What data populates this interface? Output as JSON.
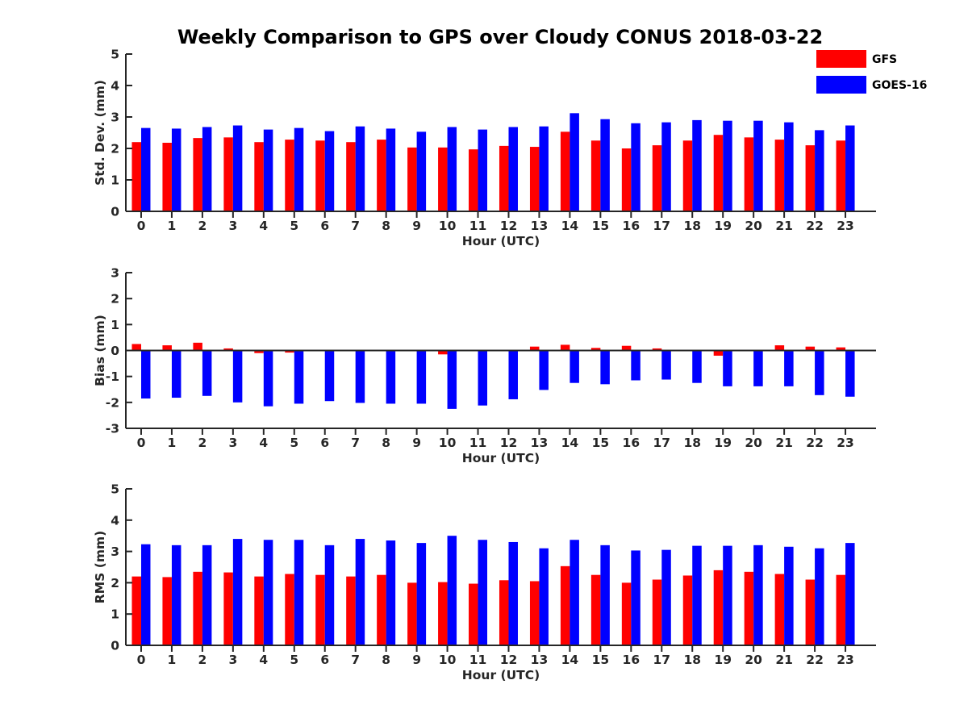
{
  "title": "Weekly Comparison to GPS over Cloudy CONUS 2018-03-22",
  "legend": {
    "placement": "top-right",
    "entries": [
      {
        "name": "GFS",
        "color": "#ff0000"
      },
      {
        "name": "GOES-16",
        "color": "#0000ff"
      }
    ]
  },
  "chart_data": [
    {
      "type": "bar",
      "xlabel": "Hour (UTC)",
      "ylabel": "Std. Dev. (mm)",
      "ylim": [
        0,
        5
      ],
      "yticks": [
        0,
        1,
        2,
        3,
        4,
        5
      ],
      "categories": [
        "0",
        "1",
        "2",
        "3",
        "4",
        "5",
        "6",
        "7",
        "8",
        "9",
        "10",
        "11",
        "12",
        "13",
        "14",
        "15",
        "16",
        "17",
        "18",
        "19",
        "20",
        "21",
        "22",
        "23"
      ],
      "series": [
        {
          "name": "GFS",
          "color": "#ff0000",
          "values": [
            2.2,
            2.18,
            2.33,
            2.35,
            2.2,
            2.28,
            2.25,
            2.2,
            2.28,
            2.03,
            2.03,
            1.97,
            2.08,
            2.05,
            2.53,
            2.25,
            2.0,
            2.1,
            2.25,
            2.43,
            2.35,
            2.28,
            2.1,
            2.25
          ]
        },
        {
          "name": "GOES-16",
          "color": "#0000ff",
          "values": [
            2.65,
            2.63,
            2.68,
            2.73,
            2.6,
            2.65,
            2.55,
            2.7,
            2.63,
            2.53,
            2.68,
            2.6,
            2.68,
            2.7,
            3.12,
            2.93,
            2.8,
            2.83,
            2.9,
            2.88,
            2.88,
            2.83,
            2.58,
            2.73
          ]
        }
      ]
    },
    {
      "type": "bar",
      "xlabel": "Hour (UTC)",
      "ylabel": "Bias (mm)",
      "ylim": [
        -3,
        3
      ],
      "yticks": [
        -3,
        -2,
        -1,
        0,
        1,
        2,
        3
      ],
      "categories": [
        "0",
        "1",
        "2",
        "3",
        "4",
        "5",
        "6",
        "7",
        "8",
        "9",
        "10",
        "11",
        "12",
        "13",
        "14",
        "15",
        "16",
        "17",
        "18",
        "19",
        "20",
        "21",
        "22",
        "23"
      ],
      "series": [
        {
          "name": "GFS",
          "color": "#ff0000",
          "values": [
            0.25,
            0.2,
            0.3,
            0.08,
            -0.1,
            -0.08,
            0.0,
            0.0,
            0.0,
            0.0,
            -0.15,
            0.0,
            0.03,
            0.15,
            0.22,
            0.1,
            0.18,
            0.08,
            -0.03,
            -0.2,
            0.0,
            0.2,
            0.15,
            0.12
          ]
        },
        {
          "name": "GOES-16",
          "color": "#0000ff",
          "values": [
            -1.85,
            -1.82,
            -1.75,
            -2.0,
            -2.15,
            -2.05,
            -1.95,
            -2.02,
            -2.05,
            -2.05,
            -2.25,
            -2.12,
            -1.88,
            -1.52,
            -1.25,
            -1.3,
            -1.15,
            -1.12,
            -1.25,
            -1.38,
            -1.38,
            -1.38,
            -1.72,
            -1.78
          ]
        }
      ]
    },
    {
      "type": "bar",
      "xlabel": "Hour (UTC)",
      "ylabel": "RMS (mm)",
      "ylim": [
        0,
        5
      ],
      "yticks": [
        0,
        1,
        2,
        3,
        4,
        5
      ],
      "categories": [
        "0",
        "1",
        "2",
        "3",
        "4",
        "5",
        "6",
        "7",
        "8",
        "9",
        "10",
        "11",
        "12",
        "13",
        "14",
        "15",
        "16",
        "17",
        "18",
        "19",
        "20",
        "21",
        "22",
        "23"
      ],
      "series": [
        {
          "name": "GFS",
          "color": "#ff0000",
          "values": [
            2.2,
            2.18,
            2.35,
            2.33,
            2.2,
            2.28,
            2.25,
            2.2,
            2.25,
            2.0,
            2.02,
            1.97,
            2.08,
            2.05,
            2.53,
            2.25,
            2.0,
            2.1,
            2.23,
            2.4,
            2.35,
            2.28,
            2.1,
            2.25
          ]
        },
        {
          "name": "GOES-16",
          "color": "#0000ff",
          "values": [
            3.23,
            3.2,
            3.2,
            3.4,
            3.37,
            3.37,
            3.2,
            3.4,
            3.35,
            3.27,
            3.5,
            3.37,
            3.3,
            3.1,
            3.37,
            3.2,
            3.03,
            3.05,
            3.18,
            3.18,
            3.2,
            3.15,
            3.1,
            3.27
          ]
        }
      ]
    }
  ]
}
